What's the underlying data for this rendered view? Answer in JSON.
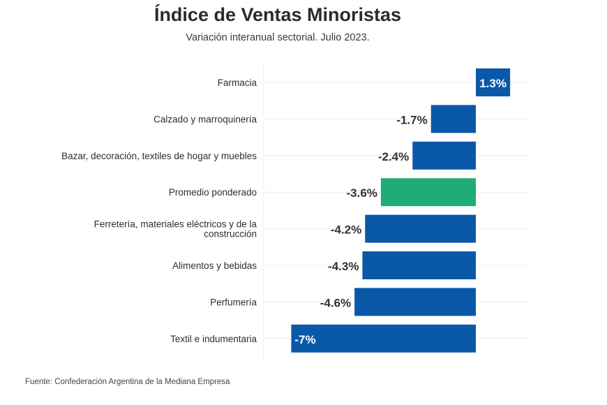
{
  "chart_data": {
    "type": "bar",
    "orientation": "horizontal",
    "title": "Índice de Ventas Minoristas",
    "subtitle": "Variación interanual sectorial. Julio 2023.",
    "source": "Fuente: Confederación Argentina de la Mediana Empresa",
    "xlabel": "",
    "ylabel": "",
    "grid": true,
    "categories": [
      "Farmacia",
      "Calzado y marroquinería",
      "Bazar, decoración, textiles de hogar y muebles",
      "Promedio ponderado",
      "Ferretería, materiales eléctricos y de la construcción",
      "Alimentos y bebidas",
      "Perfumería",
      "Textil e indumentaria"
    ],
    "category_lines": [
      [
        "Farmacia"
      ],
      [
        "Calzado y marroquinería"
      ],
      [
        "Bazar, decoración, textiles de hogar y muebles"
      ],
      [
        "Promedio ponderado"
      ],
      [
        "Ferretería, materiales eléctricos y de la",
        "construcción"
      ],
      [
        "Alimentos y bebidas"
      ],
      [
        "Perfumería"
      ],
      [
        "Textil e indumentaria"
      ]
    ],
    "values": [
      1.3,
      -1.7,
      -2.4,
      -3.6,
      -4.2,
      -4.3,
      -4.6,
      -7
    ],
    "labels": [
      "1.3%",
      "-1.7%",
      "-2.4%",
      "-3.6%",
      "-4.2%",
      "-4.3%",
      "-4.6%",
      "-7%"
    ],
    "highlight_index": 3,
    "xlim": [
      -7.0,
      1.3
    ],
    "colors": {
      "bar": "#0a59a8",
      "highlight": "#20ac76",
      "label_dark": "#333333",
      "label_light": "#ffffff",
      "grid": "#ececec"
    }
  }
}
